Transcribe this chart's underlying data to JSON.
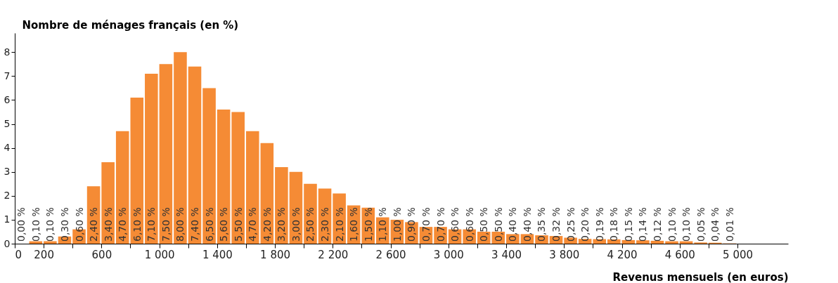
{
  "chart_data": {
    "type": "histogram",
    "ylabel": "Nombre de ménages français (en %)",
    "xlabel": "Revenus mensuels (en euros)",
    "bins": [
      0,
      100,
      200,
      300,
      400,
      500,
      600,
      700,
      800,
      900,
      1000,
      1100,
      1200,
      1300,
      1400,
      1500,
      1600,
      1700,
      1800,
      1900,
      2000,
      2100,
      2200,
      2300,
      2400,
      2500,
      2600,
      2700,
      2800,
      2900,
      3000,
      3100,
      3200,
      3300,
      3400,
      3500,
      3600,
      3700,
      3800,
      3900,
      4000,
      4100,
      4200,
      4300,
      4400,
      4500,
      4600,
      4700,
      4800,
      4900,
      5000
    ],
    "values": [
      0.0,
      0.1,
      0.1,
      0.3,
      0.6,
      2.4,
      3.4,
      4.7,
      6.1,
      7.1,
      7.5,
      8.0,
      7.4,
      6.5,
      5.6,
      5.5,
      4.7,
      4.2,
      3.2,
      3.0,
      2.5,
      2.3,
      2.1,
      1.6,
      1.5,
      1.1,
      1.0,
      0.9,
      0.7,
      0.7,
      0.6,
      0.6,
      0.5,
      0.5,
      0.4,
      0.4,
      0.35,
      0.32,
      0.25,
      0.2,
      0.19,
      0.18,
      0.15,
      0.14,
      0.12,
      0.1,
      0.1,
      0.05,
      0.04,
      0.01
    ],
    "value_labels": [
      "0,00 %",
      "0,10 %",
      "0,10 %",
      "0,30 %",
      "0,60 %",
      "2,40 %",
      "3,40 %",
      "4,70 %",
      "6,10 %",
      "7,10 %",
      "7,50 %",
      "8,00 %",
      "7,40 %",
      "6,50 %",
      "5,60 %",
      "5,50 %",
      "4,70 %",
      "4,20 %",
      "3,20 %",
      "3,00 %",
      "2,50 %",
      "2,30 %",
      "2,10 %",
      "1,60 %",
      "1,50 %",
      "1,10 %",
      "1,00 %",
      "0,90 %",
      "0,70 %",
      "0,70 %",
      "0,60 %",
      "0,60 %",
      "0,50 %",
      "0,50 %",
      "0,40 %",
      "0,40 %",
      "0,35 %",
      "0,32 %",
      "0,25 %",
      "0,20 %",
      "0,19 %",
      "0,18 %",
      "0,15 %",
      "0,14 %",
      "0,12 %",
      "0,10 %",
      "0,10 %",
      "0,05 %",
      "0,04 %",
      "0,01 %"
    ],
    "color": "#f58b35",
    "xlim": [
      0,
      5350
    ],
    "xticks": [
      0,
      200,
      {
        "value": 400,
        "label": null
      },
      {
        "value": 600,
        "label": "600"
      },
      {
        "value": 800,
        "label": null
      },
      {
        "value": 1000,
        "label": "1 000"
      },
      {
        "value": 1200,
        "label": null
      },
      {
        "value": 1400,
        "label": "1 400"
      },
      {
        "value": 1600,
        "label": null
      },
      {
        "value": 1800,
        "label": "1 800"
      },
      {
        "value": 2000,
        "label": null
      },
      {
        "value": 2200,
        "label": "2 200"
      },
      {
        "value": 2400,
        "label": null
      },
      {
        "value": 2600,
        "label": "2 600"
      },
      {
        "value": 2800,
        "label": null
      },
      {
        "value": 3000,
        "label": "3 000"
      },
      {
        "value": 3200,
        "label": null
      },
      {
        "value": 3400,
        "label": "3 400"
      },
      {
        "value": 3600,
        "label": null
      },
      {
        "value": 3800,
        "label": "3 800"
      },
      {
        "value": 4000,
        "label": null
      },
      {
        "value": 4200,
        "label": "4 200"
      },
      {
        "value": 4400,
        "label": null
      },
      {
        "value": 4600,
        "label": "4 600"
      },
      {
        "value": 4800,
        "label": null
      },
      {
        "value": 5000,
        "label": "5 000"
      }
    ],
    "ylim": [
      0,
      8.8
    ],
    "yticks": [
      0,
      1,
      2,
      3,
      4,
      5,
      6,
      7,
      8
    ],
    "grid": false,
    "legend": false
  }
}
